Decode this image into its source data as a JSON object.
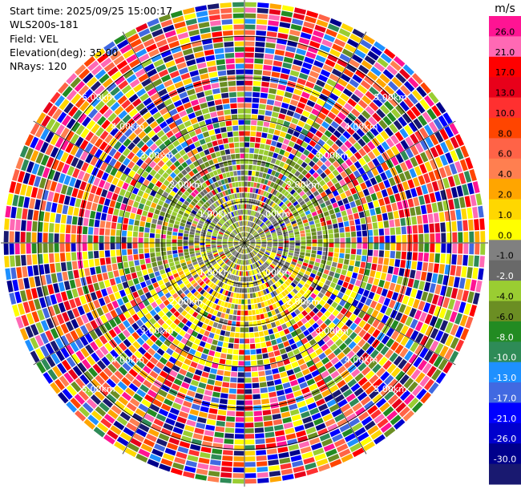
{
  "header": {
    "start_time": "Start time: 2025/09/25 15:00:17",
    "instrument": "WLS200s-181",
    "field": "Field: VEL",
    "elevation": "Elevation(deg): 35.00",
    "nrays": "NRays: 120"
  },
  "chart_data": {
    "type": "heatmap",
    "projection": "polar PPI",
    "rays": 120,
    "ring_labels": [
      "1.00km",
      "2.00km",
      "3.00km",
      "4.00km",
      "5.00km"
    ],
    "max_range_km": 5.9,
    "colorbar": {
      "unit": "m/s",
      "ticks": [
        "26.0",
        "21.0",
        "17.0",
        "13.0",
        "10.0",
        "8.0",
        "6.0",
        "4.0",
        "2.0",
        "1.0",
        "0.0",
        "-1.0",
        "-2.0",
        "-4.0",
        "-6.0",
        "-8.0",
        "-10.0",
        "-13.0",
        "-17.0",
        "-21.0",
        "-26.0",
        "-30.0"
      ],
      "colors": [
        "#ff1493",
        "#ff69b4",
        "#ff0000",
        "#e8001a",
        "#ff3030",
        "#ff4500",
        "#ff6347",
        "#ff7f50",
        "#ffa500",
        "#ffd700",
        "#ffff00",
        "#808080",
        "#696969",
        "#9acd32",
        "#6b8e23",
        "#228b22",
        "#2e8b57",
        "#1e90ff",
        "#4169e1",
        "#0000ff",
        "#0000cd",
        "#00008b",
        "#191970"
      ]
    }
  }
}
